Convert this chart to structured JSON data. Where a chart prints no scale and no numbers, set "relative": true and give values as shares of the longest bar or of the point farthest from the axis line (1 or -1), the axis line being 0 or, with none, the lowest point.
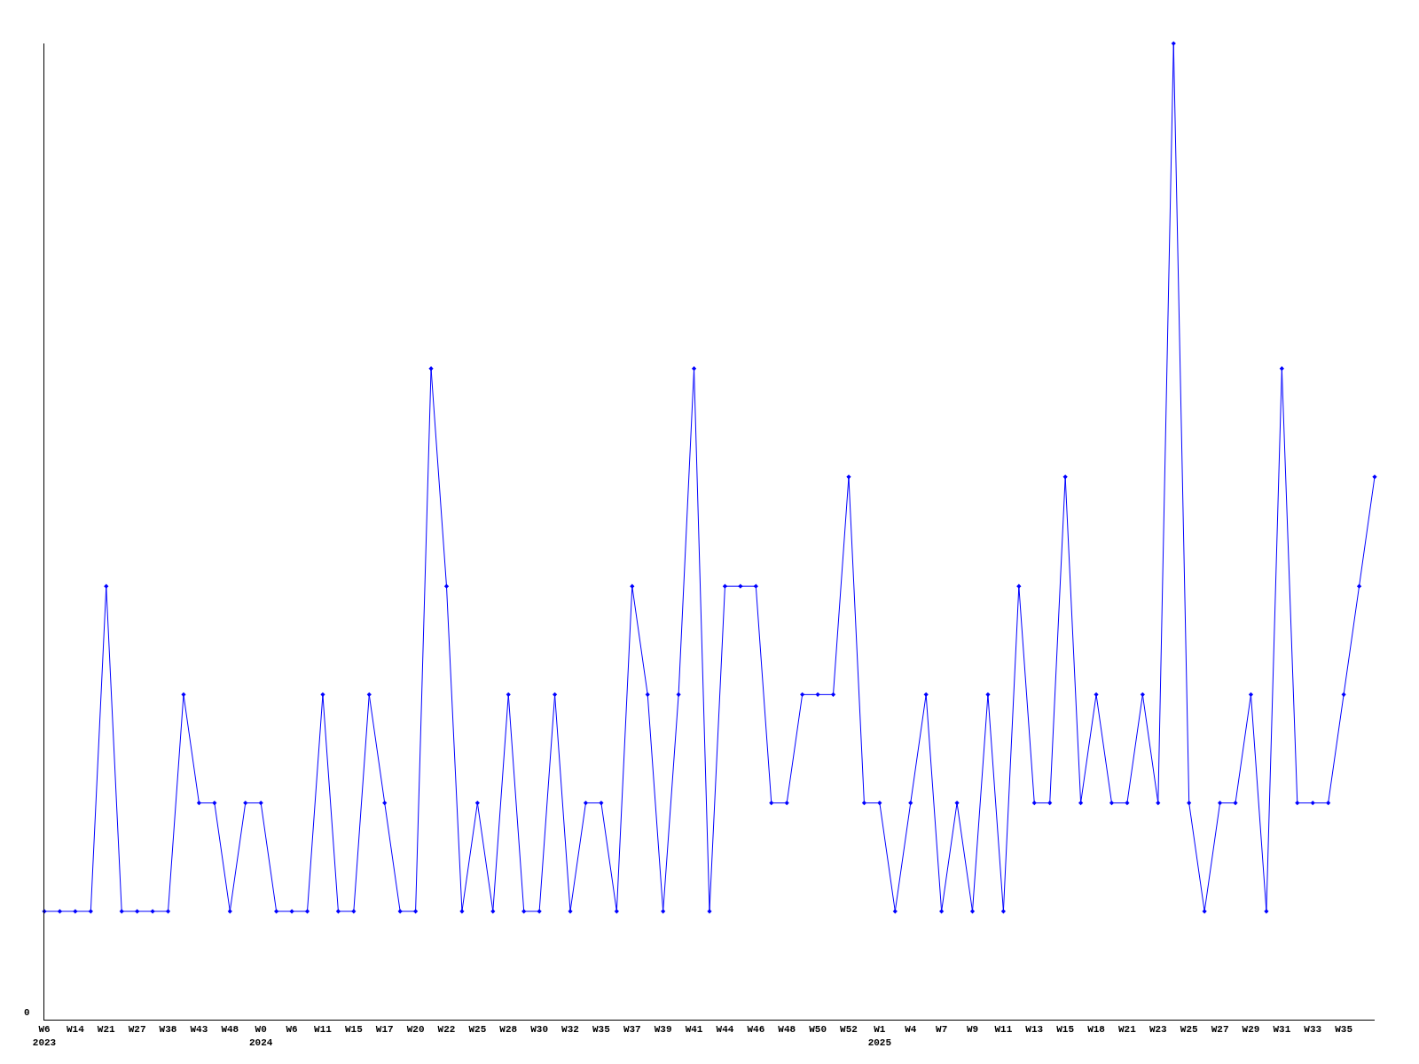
{
  "chart_data": {
    "type": "line",
    "relative": true,
    "color": "#0000ff",
    "marker": "diamond",
    "legend": false,
    "annotations": [
      "0"
    ],
    "categories": [
      "W6\n2023",
      null,
      "W14",
      null,
      "W21",
      null,
      "W27",
      null,
      "W38",
      null,
      "W43",
      null,
      "W48",
      null,
      "W0\n2024",
      null,
      "W6",
      null,
      "W11",
      null,
      "W15",
      null,
      "W17",
      null,
      "W20",
      null,
      "W22",
      null,
      "W25",
      null,
      "W28",
      null,
      "W30",
      null,
      "W32",
      null,
      "W35",
      null,
      "W37",
      null,
      "W39",
      null,
      "W41",
      null,
      "W44",
      null,
      "W46",
      null,
      "W48",
      null,
      "W50",
      null,
      "W52",
      null,
      "W1\n2025",
      null,
      "W4",
      null,
      "W7",
      null,
      "W9",
      null,
      "W11",
      null,
      "W13",
      null,
      "W15",
      null,
      "W18",
      null,
      "W21",
      null,
      "W23",
      null,
      "W25",
      null,
      "W27",
      null,
      "W29",
      null,
      "W31",
      null,
      "W33",
      null,
      "W35",
      null,
      null
    ],
    "values": [
      0.111,
      0.111,
      0.111,
      0.111,
      0.444,
      0.111,
      0.111,
      0.111,
      0.111,
      0.333,
      0.222,
      0.222,
      0.111,
      0.222,
      0.222,
      0.111,
      0.111,
      0.111,
      0.333,
      0.111,
      0.111,
      0.333,
      0.222,
      0.111,
      0.111,
      0.667,
      0.444,
      0.111,
      0.222,
      0.111,
      0.333,
      0.111,
      0.111,
      0.333,
      0.111,
      0.222,
      0.222,
      0.111,
      0.444,
      0.333,
      0.111,
      0.333,
      0.667,
      0.111,
      0.444,
      0.444,
      0.444,
      0.222,
      0.222,
      0.333,
      0.333,
      0.333,
      0.556,
      0.222,
      0.222,
      0.111,
      0.222,
      0.333,
      0.111,
      0.222,
      0.111,
      0.333,
      0.111,
      0.444,
      0.222,
      0.222,
      0.556,
      0.222,
      0.333,
      0.222,
      0.222,
      0.333,
      0.222,
      1,
      0.222,
      0.111,
      0.222,
      0.222,
      0.333,
      0.111,
      0.667,
      0.222,
      0.222,
      0.222,
      0.333,
      0.444,
      0.556
    ]
  }
}
